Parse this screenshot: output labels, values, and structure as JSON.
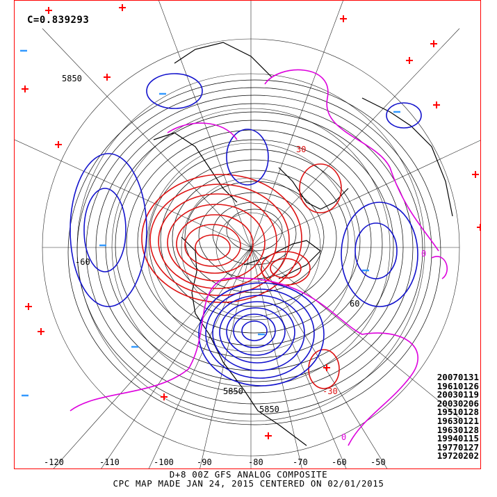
{
  "correlation_label": "C=0.839293",
  "analog_dates": [
    "20070131",
    "19610126",
    "20030119",
    "20030206",
    "19510128",
    "19630121",
    "19630128",
    "19940115",
    "19770127",
    "19720202"
  ],
  "caption_line1": "D+8 00Z GFS ANALOG COMPOSITE",
  "caption_line2": "CPC MAP MADE JAN 24, 2015 CENTERED ON 02/01/2015",
  "longitude_labels": [
    "-120",
    "-110",
    "-100",
    "-90",
    "-80",
    "-70",
    "-60",
    "-50"
  ],
  "height_labels": [
    "5850",
    "5850",
    "5850"
  ],
  "anomaly_labels": [
    "30",
    "-30",
    "-60",
    "0",
    "60",
    "0"
  ],
  "colors": {
    "positive_anomaly": "#dd1111",
    "negative_anomaly": "#1111cc",
    "zero_line": "#dd00dd",
    "heights": "#000000",
    "high_marker": "#ff0000",
    "low_marker": "#3399ff"
  }
}
